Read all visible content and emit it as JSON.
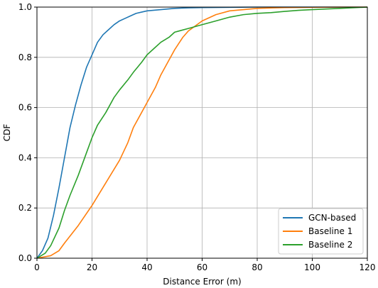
{
  "chart_data": {
    "type": "line",
    "title": "",
    "xlabel": "Distance Error (m)",
    "ylabel": "CDF",
    "xlim": [
      0,
      120
    ],
    "ylim": [
      0,
      1.0
    ],
    "xticks": [
      0,
      20,
      40,
      60,
      80,
      100,
      120
    ],
    "yticks": [
      0.0,
      0.2,
      0.4,
      0.6,
      0.8,
      1.0
    ],
    "xtick_labels": [
      "0",
      "20",
      "40",
      "60",
      "80",
      "100",
      "120"
    ],
    "ytick_labels": [
      "0.0",
      "0.2",
      "0.4",
      "0.6",
      "0.8",
      "1.0"
    ],
    "grid": true,
    "legend_position": "lower-right",
    "series": [
      {
        "name": "GCN-based",
        "color": "#1f77b4",
        "x": [
          0,
          2,
          4,
          6,
          8,
          10,
          12,
          14,
          16,
          18,
          20,
          22,
          24,
          26,
          28,
          30,
          32,
          34,
          36,
          38,
          40,
          45,
          50,
          55,
          60,
          70,
          80,
          90,
          100,
          110,
          120
        ],
        "y": [
          0,
          0.03,
          0.08,
          0.17,
          0.28,
          0.4,
          0.52,
          0.61,
          0.69,
          0.76,
          0.81,
          0.86,
          0.89,
          0.91,
          0.93,
          0.945,
          0.955,
          0.965,
          0.975,
          0.98,
          0.985,
          0.99,
          0.995,
          0.997,
          0.998,
          0.999,
          1.0,
          1.0,
          1.0,
          1.0,
          1.0
        ]
      },
      {
        "name": "Baseline 1",
        "color": "#ff7f0e",
        "x": [
          0,
          5,
          8,
          10,
          15,
          20,
          25,
          30,
          33,
          35,
          38,
          40,
          43,
          45,
          48,
          50,
          53,
          55,
          60,
          65,
          70,
          75,
          80,
          90,
          100,
          110,
          120
        ],
        "y": [
          0,
          0.01,
          0.03,
          0.06,
          0.13,
          0.21,
          0.3,
          0.39,
          0.46,
          0.52,
          0.58,
          0.62,
          0.68,
          0.73,
          0.79,
          0.83,
          0.88,
          0.905,
          0.945,
          0.97,
          0.985,
          0.99,
          0.995,
          0.998,
          0.999,
          1.0,
          1.0
        ]
      },
      {
        "name": "Baseline 2",
        "color": "#2ca02c",
        "x": [
          0,
          3,
          5,
          8,
          10,
          12,
          15,
          18,
          20,
          22,
          25,
          28,
          30,
          33,
          35,
          38,
          40,
          43,
          45,
          48,
          50,
          55,
          60,
          65,
          70,
          75,
          80,
          85,
          90,
          95,
          100,
          110,
          120
        ],
        "y": [
          0,
          0.02,
          0.05,
          0.12,
          0.19,
          0.25,
          0.33,
          0.42,
          0.48,
          0.53,
          0.58,
          0.64,
          0.67,
          0.71,
          0.74,
          0.78,
          0.81,
          0.84,
          0.86,
          0.88,
          0.9,
          0.915,
          0.93,
          0.945,
          0.96,
          0.97,
          0.975,
          0.978,
          0.983,
          0.987,
          0.99,
          0.995,
          1.0
        ]
      }
    ]
  }
}
